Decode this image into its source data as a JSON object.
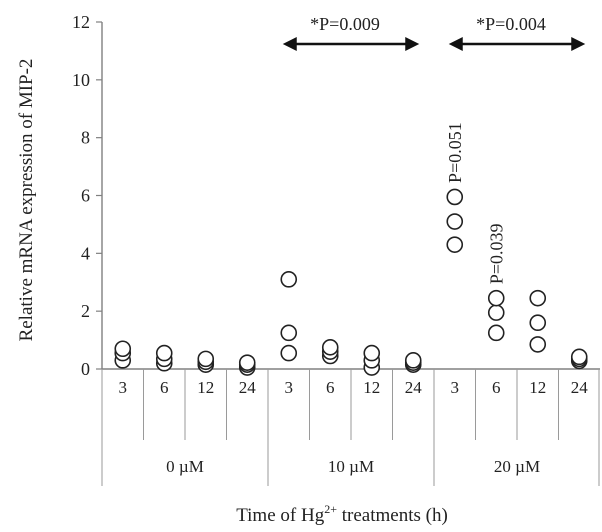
{
  "chart_data": {
    "type": "scatter",
    "ylabel": "Relative mRNA expression of MIP-2",
    "xlabel": "Time of Hg2+ treatments (h)",
    "xlabel_parts": {
      "pre": "Time of Hg",
      "sup": "2+",
      "post": " treatments (h)"
    },
    "ylim": [
      0,
      12
    ],
    "yticks": [
      "0",
      "2",
      "4",
      "6",
      "8",
      "10",
      "12"
    ],
    "grid": false,
    "groups": [
      {
        "label": "0 µM",
        "times": [
          "3",
          "6",
          "12",
          "24"
        ],
        "values": [
          [
            0.3,
            0.55,
            0.7
          ],
          [
            0.2,
            0.35,
            0.55
          ],
          [
            0.15,
            0.25,
            0.35
          ],
          [
            0.05,
            0.15,
            0.22
          ]
        ]
      },
      {
        "label": "10 µM",
        "times": [
          "3",
          "6",
          "12",
          "24"
        ],
        "values": [
          [
            0.55,
            1.25,
            3.1
          ],
          [
            0.45,
            0.6,
            0.75
          ],
          [
            0.05,
            0.3,
            0.55
          ],
          [
            0.15,
            0.22,
            0.3
          ]
        ]
      },
      {
        "label": "20  µM",
        "times": [
          "3",
          "6",
          "12",
          "24"
        ],
        "values": [
          [
            4.3,
            5.1,
            5.95
          ],
          [
            1.25,
            1.95,
            2.45
          ],
          [
            0.85,
            1.6,
            2.45
          ],
          [
            0.28,
            0.35,
            0.42
          ]
        ]
      }
    ],
    "annotations": [
      {
        "text": "*P=0.009",
        "type": "arrow",
        "from_group": 1,
        "from_index": 0,
        "to_group": 1,
        "to_index": 3
      },
      {
        "text": "*P=0.004",
        "type": "arrow",
        "from_group": 2,
        "from_index": 0,
        "to_group": 2,
        "to_index": 3
      },
      {
        "text": "P=0.051",
        "type": "vertical",
        "group": 2,
        "index": 0
      },
      {
        "text": "P=0.039",
        "type": "vertical",
        "group": 2,
        "index": 1
      }
    ]
  }
}
